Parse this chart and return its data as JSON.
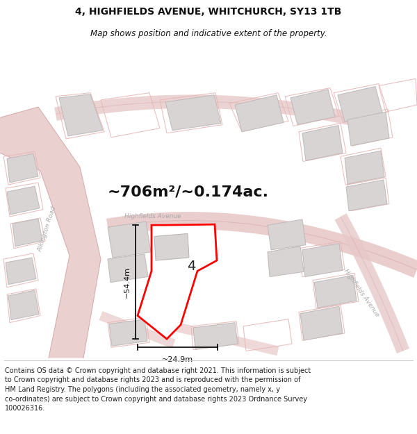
{
  "title": "4, HIGHFIELDS AVENUE, WHITCHURCH, SY13 1TB",
  "subtitle": "Map shows position and indicative extent of the property.",
  "area_text": "~706m²/~0.174ac.",
  "label_number": "4",
  "dim_height": "~54.4m",
  "dim_width": "~24.9m",
  "footer_text_line1": "Contains OS data © Crown copyright and database right 2021. This information is subject",
  "footer_text_line2": "to Crown copyright and database rights 2023 and is reproduced with the permission of",
  "footer_text_line3": "HM Land Registry. The polygons (including the associated geometry, namely x, y",
  "footer_text_line4": "co-ordinates) are subject to Crown copyright and database rights 2023 Ordnance Survey",
  "footer_text_line5": "100026316.",
  "map_bg": "#f7f4f4",
  "plot_fill": "#ffffff",
  "plot_edge": "#ff0000",
  "road_color": "#e8c8c8",
  "road_edge": "#d4a8a8",
  "building_fill": "#d8d4d4",
  "building_edge": "#c0b8b8",
  "title_fontsize": 10,
  "subtitle_fontsize": 8.5,
  "area_fontsize": 16,
  "label_fontsize": 14,
  "dim_fontsize": 8,
  "footer_fontsize": 7.0,
  "road_label_color": "#aaaaaa",
  "road_label_size": 6.5
}
